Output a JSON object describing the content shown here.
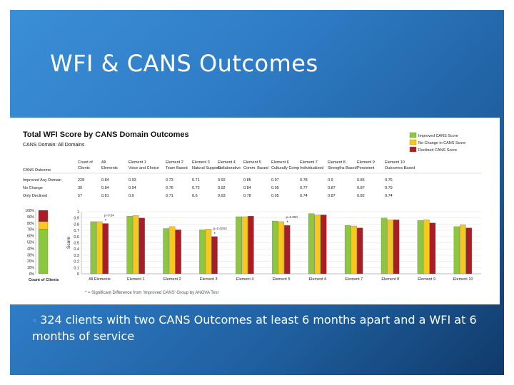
{
  "slide": {
    "title": "WFI & CANS Outcomes",
    "bullet_mark": "◦",
    "bullet": "324 clients with two CANS Outcomes at least 6 months apart and a WFI at 6 months of service"
  },
  "colors": {
    "improved": "#8dc63f",
    "no_change": "#f7c81e",
    "declined": "#a81d26"
  },
  "chart_data": {
    "type": "bar",
    "title": "Total WFI Score by CANS Domain Outcomes",
    "subtitle": "CANS Domain:  All Domains",
    "legend": [
      "Improved CANS Score",
      "No Change in CANS Score",
      "Declined CANS Score"
    ],
    "legend_position": "top-right",
    "table": {
      "header_row1": [
        "Count of",
        "All",
        "Element 1",
        "Element 2",
        "Element 3",
        "Element 4",
        "Element 5",
        "Element 6",
        "Element 7",
        "Element 8",
        "Element 9",
        "Element 10"
      ],
      "header_row2": [
        "Clients",
        "Elements",
        "Voice and Choice",
        "Team Based",
        "Natural Supports",
        "Collaborative",
        "Comm. Based",
        "Culturally Comp",
        "Individualized",
        "Strengths Based",
        "Persistent",
        "Outcomes Based"
      ],
      "row_header_label": "CANS Outcome",
      "rows": [
        {
          "label": "Improved Any Domain",
          "values": [
            "228",
            "0.84",
            "0.93",
            "0.73",
            "0.71",
            "0.92",
            "0.85",
            "0.97",
            "0.78",
            "0.9",
            "0.86",
            "0.76"
          ]
        },
        {
          "label": "No Change",
          "values": [
            "39",
            "0.84",
            "0.94",
            "0.76",
            "0.72",
            "0.92",
            "0.84",
            "0.95",
            "0.77",
            "0.87",
            "0.87",
            "0.79"
          ]
        },
        {
          "label": "Only Declined",
          "values": [
            "57",
            "0.81",
            "0.9",
            "0.71",
            "0.6",
            "0.93",
            "0.78",
            "0.95",
            "0.74",
            "0.87",
            "0.82",
            "0.74"
          ]
        }
      ]
    },
    "categories": [
      "All Elements",
      "Element 1",
      "Element 2",
      "Element 3",
      "Element 4",
      "Element 5",
      "Element 6",
      "Element 7",
      "Element 8",
      "Element 9",
      "Element 10"
    ],
    "series": [
      {
        "name": "Improved CANS Score",
        "values": [
          0.84,
          0.93,
          0.73,
          0.71,
          0.92,
          0.85,
          0.97,
          0.78,
          0.9,
          0.86,
          0.76
        ]
      },
      {
        "name": "No Change in CANS Score",
        "values": [
          0.84,
          0.94,
          0.76,
          0.72,
          0.92,
          0.84,
          0.95,
          0.77,
          0.87,
          0.87,
          0.79
        ]
      },
      {
        "name": "Declined CANS Score",
        "values": [
          0.81,
          0.9,
          0.71,
          0.6,
          0.93,
          0.78,
          0.95,
          0.74,
          0.87,
          0.82,
          0.74
        ]
      }
    ],
    "ylabel": "Score",
    "ylim": [
      0,
      1
    ],
    "yticks": [
      "0",
      "0.1",
      "0.2",
      "0.3",
      "0.4",
      "0.5",
      "0.6",
      "0.7",
      "0.8",
      "0.9",
      "1"
    ],
    "annotations": [
      {
        "category_index": 0,
        "text": "p=0.04",
        "marker": "*"
      },
      {
        "category_index": 3,
        "text": "p=0.0003",
        "marker": "*"
      },
      {
        "category_index": 5,
        "text": "p=0.050",
        "marker": "*"
      }
    ],
    "footnote": "* = Significant Difference from 'Improved CANS' Group by ANOVA Test",
    "count_chart": {
      "title": "Count of Clients",
      "yticks": [
        "0%",
        "10%",
        "20%",
        "30%",
        "40%",
        "50%",
        "60%",
        "70%",
        "80%",
        "90%",
        "100%"
      ],
      "segments": [
        {
          "name": "Improved CANS Score",
          "percent": 70.4
        },
        {
          "name": "No Change in CANS Score",
          "percent": 12.0
        },
        {
          "name": "Declined CANS Score",
          "percent": 17.6
        }
      ]
    }
  }
}
